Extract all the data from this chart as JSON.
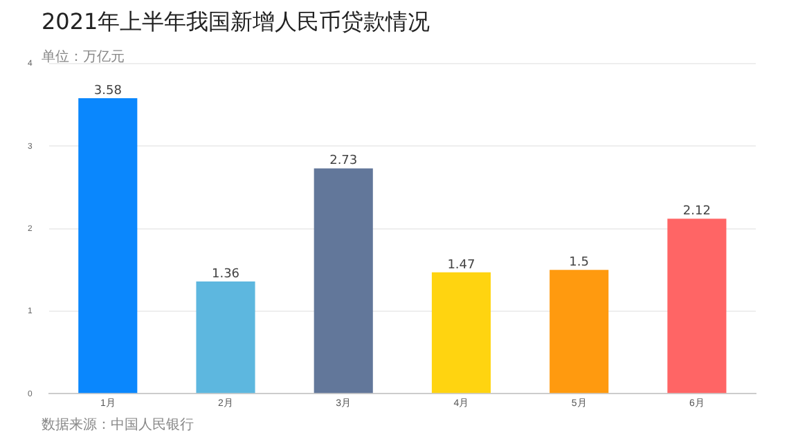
{
  "chart_data": {
    "type": "bar",
    "title": "2021年上半年我国新增人民币贷款情况",
    "subtitle": "单位：万亿元",
    "annotations": [
      "数据来源：中国人民银行"
    ],
    "categories": [
      "1月",
      "2月",
      "3月",
      "4月",
      "5月",
      "6月"
    ],
    "values": [
      3.58,
      1.36,
      2.73,
      1.47,
      1.5,
      2.12
    ],
    "colors": [
      "#0a87fd",
      "#5db7df",
      "#62779a",
      "#ffd410",
      "#ff9a0f",
      "#ff6565"
    ],
    "ylim": [
      0,
      4
    ],
    "yticks": [
      0,
      1,
      2,
      3,
      4
    ],
    "grid": "y",
    "data_labels": true
  }
}
